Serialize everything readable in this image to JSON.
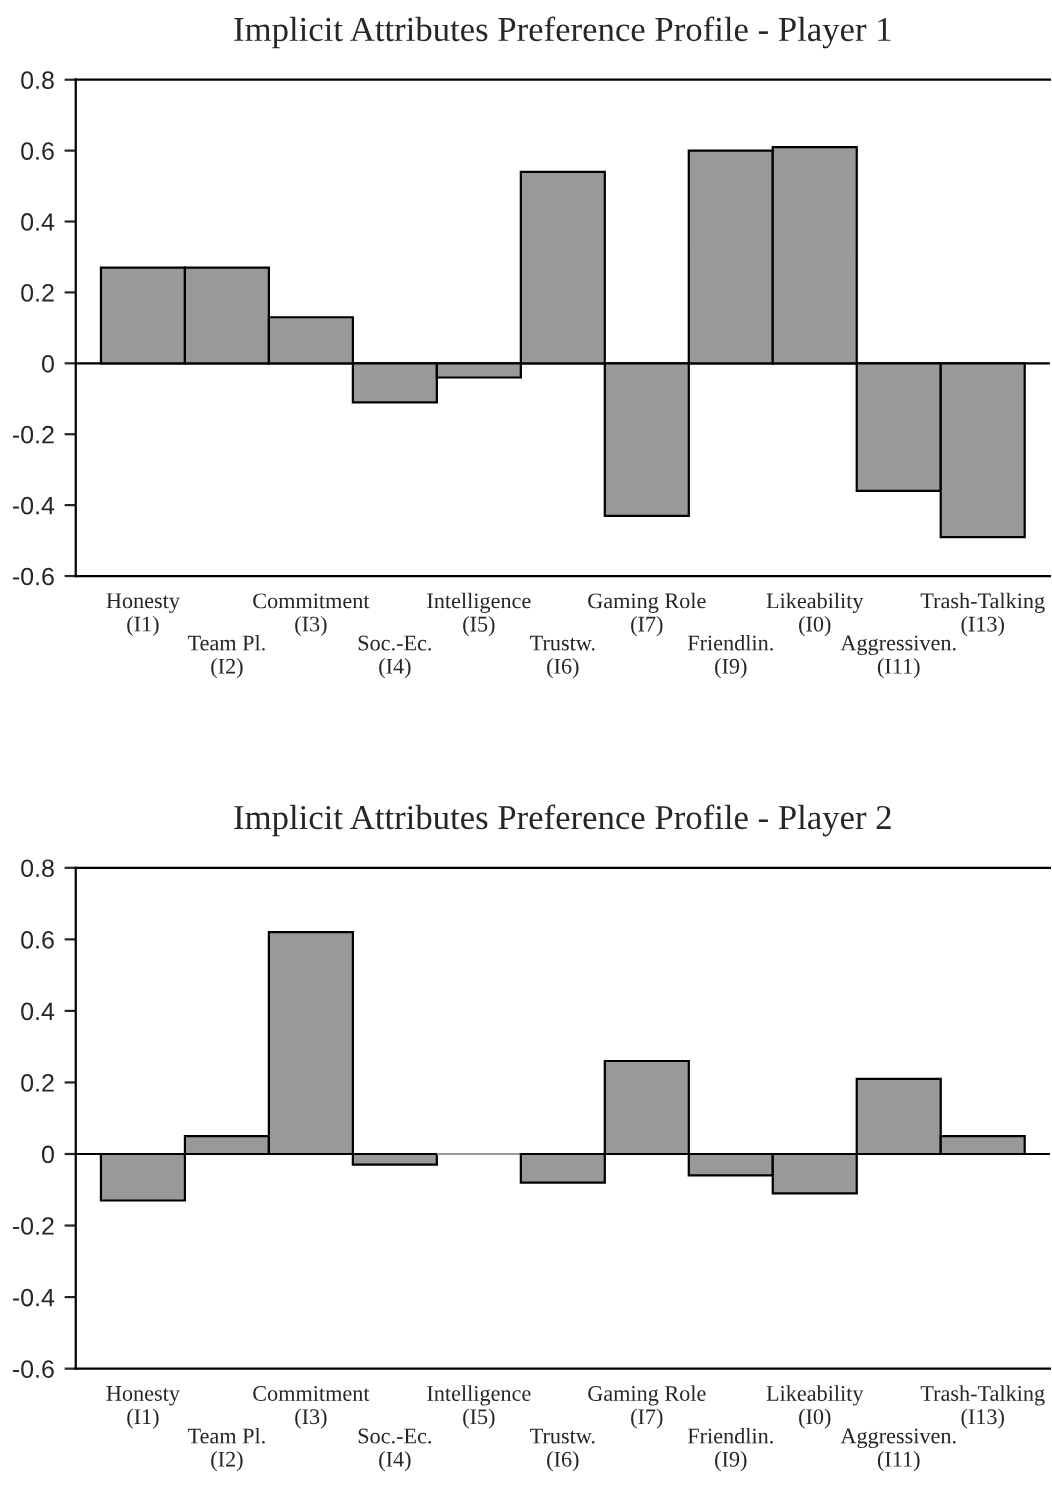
{
  "chart_data": [
    {
      "type": "bar",
      "title": "Implicit Attributes Preference Profile - Player 1",
      "categories": [
        "Honesty\n(I1)",
        "Team Pl.\n(I2)",
        "Commitment\n(I3)",
        "Soc.-Ec.\n(I4)",
        "Intelligence\n(I5)",
        "Trustw.\n(I6)",
        "Gaming Role\n(I7)",
        "Friendlin.\n(I9)",
        "Likeability\n(I0)",
        "Aggressiven.\n(I11)",
        "Trash-Talking\n(I13)"
      ],
      "values": [
        0.27,
        0.27,
        0.13,
        -0.11,
        -0.04,
        0.54,
        -0.43,
        0.6,
        0.61,
        -0.36,
        -0.49
      ],
      "color": "#999999",
      "ylim": [
        -0.6,
        0.8
      ],
      "yticks": [
        -0.6,
        -0.4,
        -0.2,
        0,
        0.2,
        0.4,
        0.6,
        0.8
      ]
    },
    {
      "type": "bar",
      "title": "Implicit Attributes Preference Profile - Player 2",
      "categories": [
        "Honesty\n(I1)",
        "Team Pl.\n(I2)",
        "Commitment\n(I3)",
        "Soc.-Ec.\n(I4)",
        "Intelligence\n(I5)",
        "Trustw.\n(I6)",
        "Gaming Role\n(I7)",
        "Friendlin.\n(I9)",
        "Likeability\n(I0)",
        "Aggressiven.\n(I11)",
        "Trash-Talking\n(I13)"
      ],
      "values": [
        -0.13,
        0.05,
        0.62,
        -0.03,
        0.0,
        -0.08,
        0.26,
        -0.06,
        -0.11,
        0.21,
        0.05
      ],
      "color": "#999999",
      "ylim": [
        -0.6,
        0.8
      ],
      "yticks": [
        -0.6,
        -0.4,
        -0.2,
        0,
        0.2,
        0.4,
        0.6,
        0.8
      ]
    }
  ]
}
